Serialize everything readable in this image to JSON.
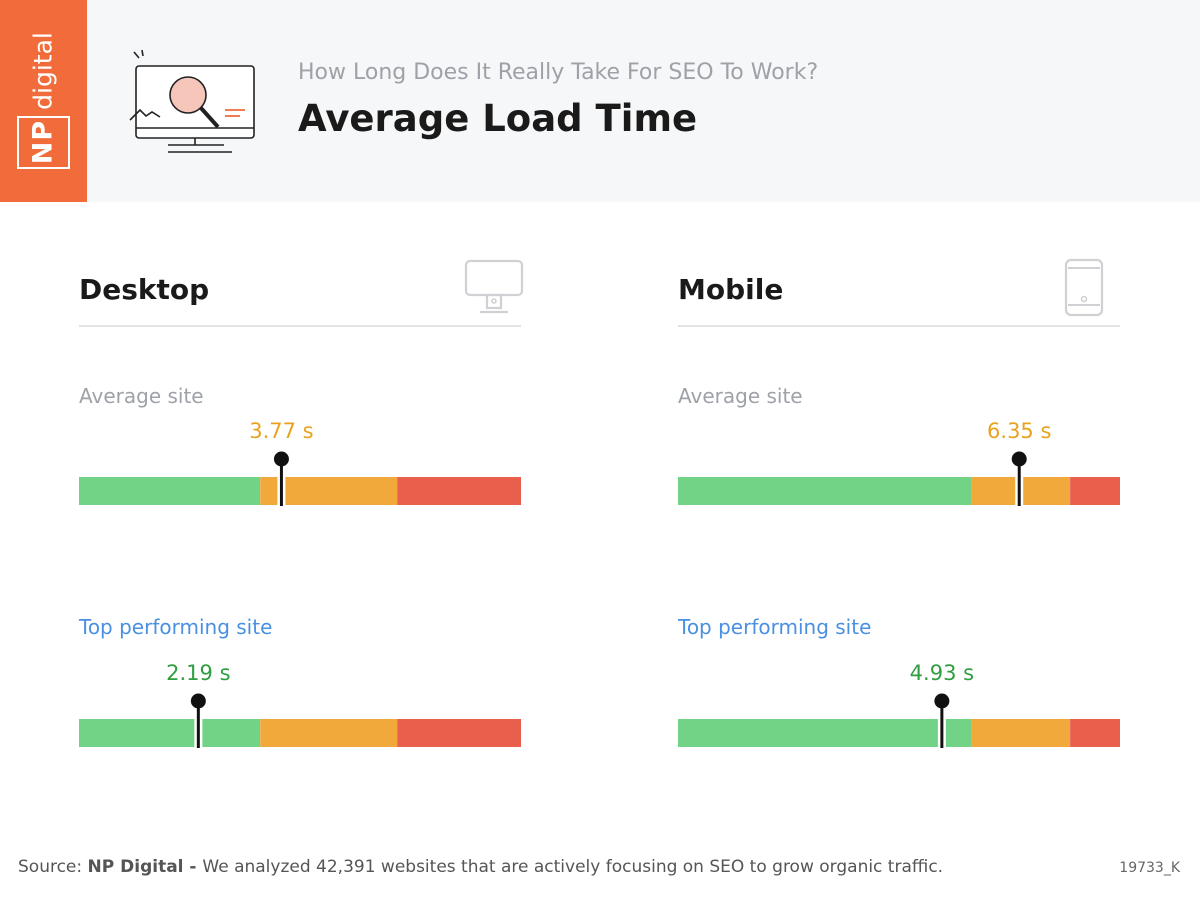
{
  "brand": {
    "np": "NP",
    "name": "digital"
  },
  "header": {
    "subtitle": "How Long Does It Really Take For SEO To Work?",
    "title": "Average Load Time",
    "icon": "monitor-magnifier-icon"
  },
  "panels": [
    {
      "title": "Desktop",
      "icon": "desktop-monitor-icon",
      "avg_label": "Average site",
      "top_label": "Top performing site"
    },
    {
      "title": "Mobile",
      "icon": "smartphone-icon",
      "avg_label": "Average site",
      "top_label": "Top performing site"
    }
  ],
  "colors": {
    "good": "#72d386",
    "needs_improvement": "#f2a93b",
    "poor": "#ea5e4c",
    "avg_value": "#e9a21f",
    "top_value": "#2e9e3f",
    "brand": "#f26b3a"
  },
  "chart_data": [
    {
      "type": "bar",
      "title": "Desktop",
      "unit": "s",
      "scale_fractions": [
        0.41,
        0.72,
        1.0
      ],
      "markers": [
        {
          "label": "Average site",
          "value": 3.77,
          "display": "3.77 s",
          "position_fraction": 0.458
        },
        {
          "label": "Top performing site",
          "value": 2.19,
          "display": "2.19 s",
          "position_fraction": 0.27
        }
      ]
    },
    {
      "type": "bar",
      "title": "Mobile",
      "unit": "s",
      "scale_fractions": [
        0.665,
        0.887,
        1.0
      ],
      "markers": [
        {
          "label": "Average site",
          "value": 6.35,
          "display": "6.35 s",
          "position_fraction": 0.772
        },
        {
          "label": "Top performing site",
          "value": 4.93,
          "display": "4.93 s",
          "position_fraction": 0.597
        }
      ]
    }
  ],
  "footer": {
    "source_prefix": "Source: ",
    "source_name": "NP Digital - ",
    "source_text": "We analyzed 42,391 websites that are actively focusing on SEO to grow organic traffic.",
    "code": "19733_K"
  }
}
